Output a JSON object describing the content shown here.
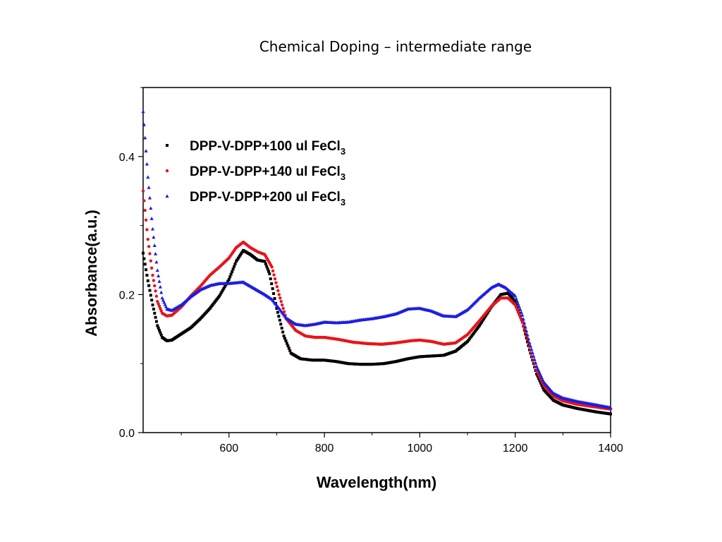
{
  "chart_data": {
    "type": "scatter",
    "title": "Chemical Doping – intermediate range",
    "xlabel": "Wavelength(nm)",
    "ylabel": "Absorbance(a.u.)",
    "xlim": [
      420,
      1400
    ],
    "ylim": [
      0.0,
      0.5
    ],
    "x_ticks": [
      600,
      800,
      1000,
      1200,
      1400
    ],
    "x_tick_labels": [
      "600",
      "800",
      "1000",
      "1200",
      "1400"
    ],
    "y_ticks": [
      0.0,
      0.2,
      0.4
    ],
    "y_tick_labels": [
      "0.0",
      "0.2",
      "0.4"
    ],
    "grid": false,
    "legend_position": "top-left",
    "series": [
      {
        "name": "DPP-V-DPP+100 ul FeCl",
        "subscript": "3",
        "color": "#000000",
        "marker": "square",
        "points": [
          [
            420,
            0.26
          ],
          [
            430,
            0.22
          ],
          [
            440,
            0.185
          ],
          [
            450,
            0.155
          ],
          [
            460,
            0.138
          ],
          [
            470,
            0.133
          ],
          [
            480,
            0.134
          ],
          [
            500,
            0.143
          ],
          [
            520,
            0.152
          ],
          [
            540,
            0.165
          ],
          [
            560,
            0.18
          ],
          [
            580,
            0.198
          ],
          [
            600,
            0.222
          ],
          [
            615,
            0.248
          ],
          [
            630,
            0.264
          ],
          [
            645,
            0.258
          ],
          [
            660,
            0.25
          ],
          [
            675,
            0.248
          ],
          [
            685,
            0.23
          ],
          [
            700,
            0.18
          ],
          [
            715,
            0.14
          ],
          [
            730,
            0.115
          ],
          [
            750,
            0.107
          ],
          [
            775,
            0.105
          ],
          [
            800,
            0.105
          ],
          [
            825,
            0.103
          ],
          [
            850,
            0.1
          ],
          [
            875,
            0.099
          ],
          [
            900,
            0.099
          ],
          [
            925,
            0.1
          ],
          [
            950,
            0.103
          ],
          [
            975,
            0.107
          ],
          [
            1000,
            0.11
          ],
          [
            1025,
            0.111
          ],
          [
            1050,
            0.112
          ],
          [
            1075,
            0.118
          ],
          [
            1100,
            0.132
          ],
          [
            1125,
            0.155
          ],
          [
            1150,
            0.182
          ],
          [
            1170,
            0.2
          ],
          [
            1185,
            0.202
          ],
          [
            1200,
            0.19
          ],
          [
            1215,
            0.16
          ],
          [
            1230,
            0.12
          ],
          [
            1245,
            0.085
          ],
          [
            1260,
            0.062
          ],
          [
            1280,
            0.047
          ],
          [
            1300,
            0.04
          ],
          [
            1330,
            0.035
          ],
          [
            1370,
            0.03
          ],
          [
            1400,
            0.027
          ]
        ]
      },
      {
        "name": "DPP-V-DPP+140 ul FeCl",
        "subscript": "3",
        "color": "#e8141b",
        "marker": "circle",
        "points": [
          [
            420,
            0.35
          ],
          [
            430,
            0.28
          ],
          [
            440,
            0.228
          ],
          [
            450,
            0.19
          ],
          [
            460,
            0.173
          ],
          [
            470,
            0.169
          ],
          [
            480,
            0.17
          ],
          [
            500,
            0.182
          ],
          [
            520,
            0.198
          ],
          [
            540,
            0.212
          ],
          [
            560,
            0.228
          ],
          [
            580,
            0.24
          ],
          [
            600,
            0.253
          ],
          [
            615,
            0.268
          ],
          [
            630,
            0.276
          ],
          [
            645,
            0.268
          ],
          [
            660,
            0.262
          ],
          [
            675,
            0.258
          ],
          [
            690,
            0.24
          ],
          [
            705,
            0.2
          ],
          [
            720,
            0.165
          ],
          [
            740,
            0.148
          ],
          [
            760,
            0.14
          ],
          [
            780,
            0.138
          ],
          [
            800,
            0.138
          ],
          [
            830,
            0.135
          ],
          [
            860,
            0.131
          ],
          [
            890,
            0.129
          ],
          [
            920,
            0.128
          ],
          [
            950,
            0.13
          ],
          [
            980,
            0.133
          ],
          [
            1000,
            0.134
          ],
          [
            1025,
            0.132
          ],
          [
            1050,
            0.128
          ],
          [
            1075,
            0.13
          ],
          [
            1100,
            0.142
          ],
          [
            1125,
            0.162
          ],
          [
            1150,
            0.183
          ],
          [
            1170,
            0.195
          ],
          [
            1185,
            0.195
          ],
          [
            1200,
            0.185
          ],
          [
            1215,
            0.16
          ],
          [
            1230,
            0.125
          ],
          [
            1245,
            0.09
          ],
          [
            1260,
            0.068
          ],
          [
            1280,
            0.053
          ],
          [
            1300,
            0.046
          ],
          [
            1330,
            0.041
          ],
          [
            1370,
            0.037
          ],
          [
            1400,
            0.034
          ]
        ]
      },
      {
        "name": "DPP-V-DPP+200 ul FeCl",
        "subscript": "3",
        "color": "#1d1de0",
        "marker": "triangle",
        "points": [
          [
            420,
            0.465
          ],
          [
            430,
            0.37
          ],
          [
            440,
            0.295
          ],
          [
            450,
            0.235
          ],
          [
            460,
            0.195
          ],
          [
            470,
            0.179
          ],
          [
            480,
            0.177
          ],
          [
            500,
            0.185
          ],
          [
            520,
            0.197
          ],
          [
            540,
            0.207
          ],
          [
            560,
            0.213
          ],
          [
            580,
            0.216
          ],
          [
            600,
            0.216
          ],
          [
            615,
            0.217
          ],
          [
            630,
            0.218
          ],
          [
            645,
            0.212
          ],
          [
            660,
            0.206
          ],
          [
            675,
            0.2
          ],
          [
            690,
            0.193
          ],
          [
            705,
            0.18
          ],
          [
            720,
            0.166
          ],
          [
            740,
            0.157
          ],
          [
            760,
            0.155
          ],
          [
            780,
            0.157
          ],
          [
            800,
            0.16
          ],
          [
            825,
            0.159
          ],
          [
            850,
            0.16
          ],
          [
            875,
            0.163
          ],
          [
            900,
            0.165
          ],
          [
            925,
            0.168
          ],
          [
            950,
            0.172
          ],
          [
            975,
            0.179
          ],
          [
            1000,
            0.18
          ],
          [
            1025,
            0.176
          ],
          [
            1050,
            0.169
          ],
          [
            1075,
            0.168
          ],
          [
            1100,
            0.178
          ],
          [
            1125,
            0.195
          ],
          [
            1150,
            0.21
          ],
          [
            1165,
            0.215
          ],
          [
            1180,
            0.21
          ],
          [
            1200,
            0.198
          ],
          [
            1215,
            0.17
          ],
          [
            1230,
            0.13
          ],
          [
            1245,
            0.096
          ],
          [
            1260,
            0.073
          ],
          [
            1280,
            0.057
          ],
          [
            1300,
            0.05
          ],
          [
            1330,
            0.045
          ],
          [
            1370,
            0.04
          ],
          [
            1400,
            0.036
          ]
        ]
      }
    ]
  }
}
